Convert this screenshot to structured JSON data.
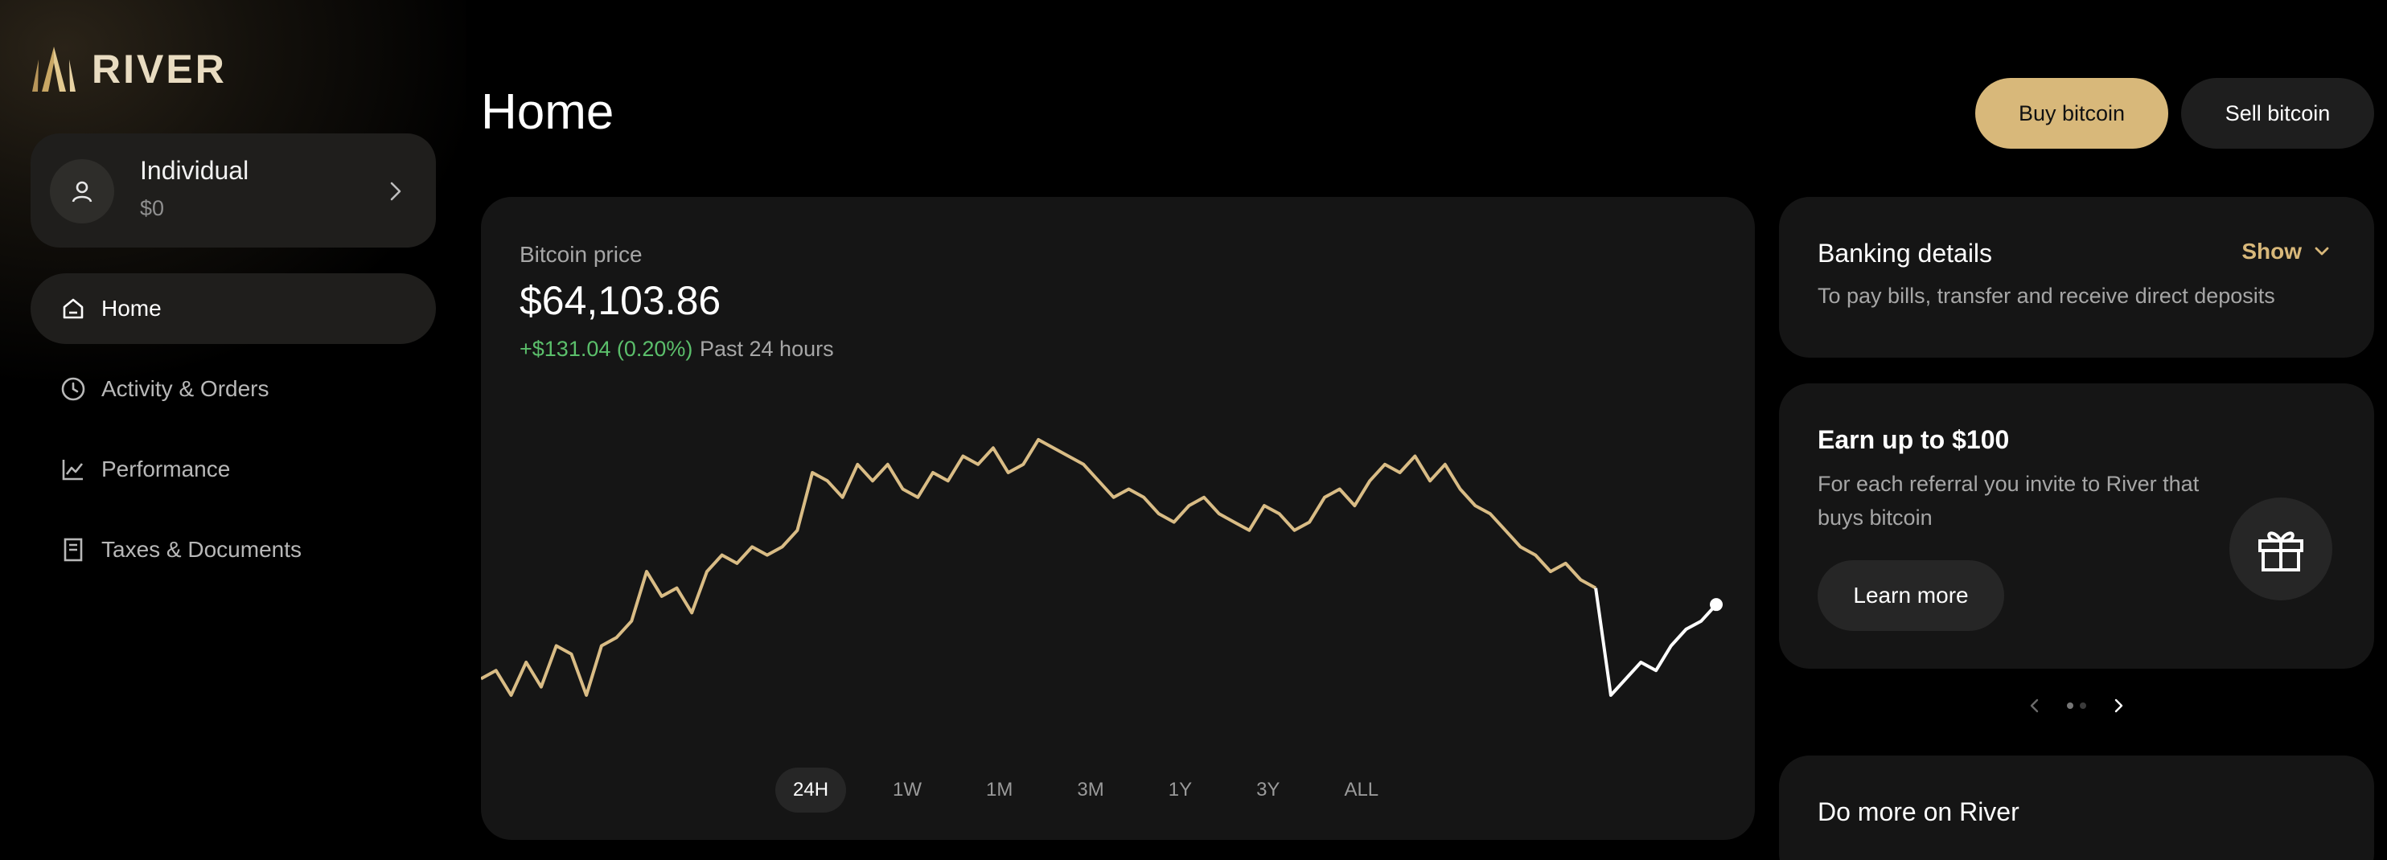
{
  "app": {
    "logo_text": "RIVER"
  },
  "account": {
    "name": "Individual",
    "balance": "$0"
  },
  "nav": {
    "items": [
      {
        "label": "Home",
        "icon": "home-icon",
        "active": true
      },
      {
        "label": "Activity & Orders",
        "icon": "clock-icon",
        "active": false
      },
      {
        "label": "Performance",
        "icon": "chart-line-icon",
        "active": false
      },
      {
        "label": "Taxes & Documents",
        "icon": "document-icon",
        "active": false
      }
    ]
  },
  "header": {
    "title": "Home",
    "buy_label": "Buy bitcoin",
    "sell_label": "Sell bitcoin"
  },
  "price_card": {
    "label": "Bitcoin price",
    "value": "$64,103.86",
    "change": "+$131.04 (0.20%)",
    "period": "Past 24 hours",
    "ranges": [
      "24H",
      "1W",
      "1M",
      "3M",
      "1Y",
      "3Y",
      "ALL"
    ],
    "selected_range": "24H"
  },
  "chart_data": {
    "type": "line",
    "series": [
      {
        "values": [
          63950,
          63960,
          63930,
          63970,
          63940,
          63990,
          63980,
          63930,
          63990,
          64000,
          64020,
          64080,
          64050,
          64060,
          64030,
          64080,
          64100,
          64090,
          64110,
          64100,
          64110,
          64130,
          64200,
          64190,
          64170,
          64210,
          64190,
          64210,
          64180,
          64170,
          64200,
          64190,
          64220,
          64210,
          64230,
          64200,
          64210,
          64240,
          64230,
          64220,
          64210,
          64190,
          64170,
          64180,
          64170,
          64150,
          64140,
          64160,
          64170,
          64150,
          64140,
          64130,
          64160,
          64150,
          64130,
          64140,
          64170,
          64180,
          64160,
          64190,
          64210,
          64200,
          64220,
          64190,
          64210,
          64180,
          64160,
          64150,
          64130,
          64110,
          64100,
          64080,
          64090,
          64070,
          64060,
          63930,
          63950,
          63970,
          63960,
          63990,
          64010,
          64020,
          64040
        ],
        "color": "#d9bc85",
        "tail_color": "#ffffff"
      }
    ],
    "grid": false,
    "legend": "none"
  },
  "banking": {
    "title": "Banking details",
    "toggle_label": "Show",
    "description": "To pay bills, transfer and receive direct deposits"
  },
  "earn": {
    "title": "Earn up to $100",
    "description": "For each referral you invite to River that buys bitcoin",
    "button_label": "Learn more",
    "icon": "gift-icon"
  },
  "carousel": {
    "active_index": 0,
    "count": 2
  },
  "more": {
    "title": "Do more on River"
  },
  "colors": {
    "accent": "#d8b87a",
    "positive": "#5bbf6b",
    "card": "#151515"
  }
}
